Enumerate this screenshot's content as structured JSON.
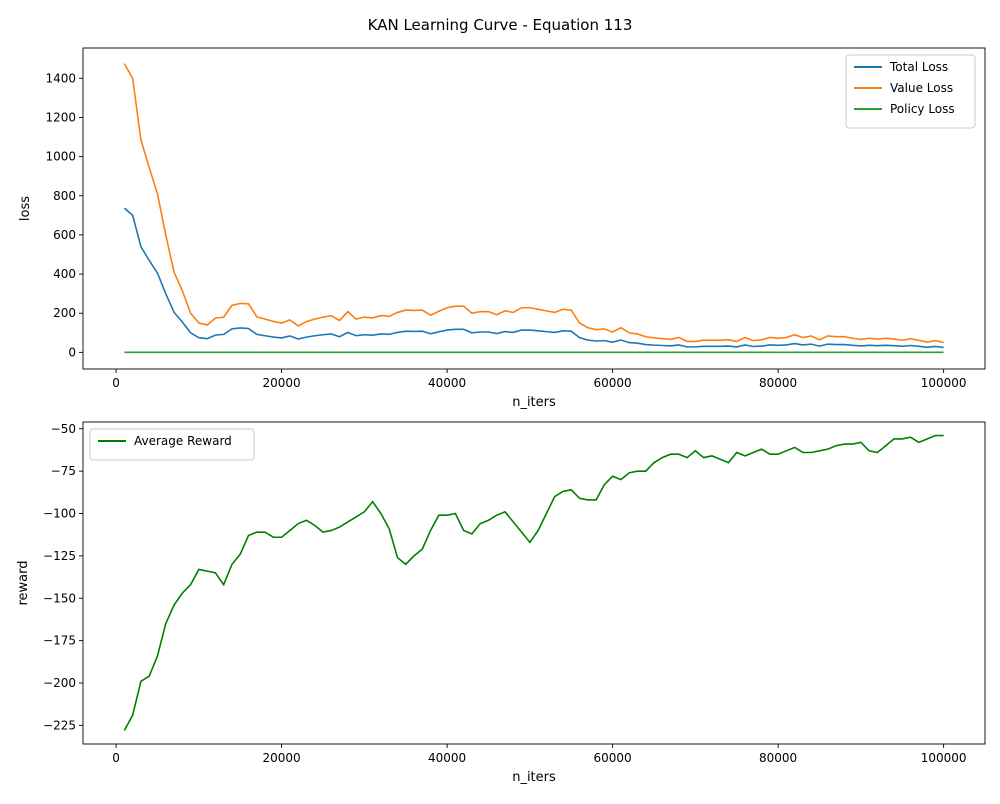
{
  "figure": {
    "title": "KAN Learning Curve - Equation 113"
  },
  "chart_data": [
    {
      "type": "line",
      "xlabel": "n_iters",
      "ylabel": "loss",
      "xlim": [
        -4000,
        105000
      ],
      "ylim": [
        -85,
        1555
      ],
      "xticks": [
        0,
        20000,
        40000,
        60000,
        80000,
        100000
      ],
      "yticks": [
        0,
        200,
        400,
        600,
        800,
        1000,
        1200,
        1400
      ],
      "legend": "top-right",
      "x": [
        1000,
        2000,
        3000,
        4000,
        5000,
        6000,
        7000,
        8000,
        9000,
        10000,
        11000,
        12000,
        13000,
        14000,
        15000,
        16000,
        17000,
        18000,
        19000,
        20000,
        21000,
        22000,
        23000,
        24000,
        25000,
        26000,
        27000,
        28000,
        29000,
        30000,
        31000,
        32000,
        33000,
        34000,
        35000,
        36000,
        37000,
        38000,
        39000,
        40000,
        41000,
        42000,
        43000,
        44000,
        45000,
        46000,
        47000,
        48000,
        49000,
        50000,
        51000,
        52000,
        53000,
        54000,
        55000,
        56000,
        57000,
        58000,
        59000,
        60000,
        61000,
        62000,
        63000,
        64000,
        65000,
        66000,
        67000,
        68000,
        69000,
        70000,
        71000,
        72000,
        73000,
        74000,
        75000,
        76000,
        77000,
        78000,
        79000,
        80000,
        81000,
        82000,
        83000,
        84000,
        85000,
        86000,
        87000,
        88000,
        89000,
        90000,
        91000,
        92000,
        93000,
        94000,
        95000,
        96000,
        97000,
        98000,
        99000,
        100000
      ],
      "series": [
        {
          "name": "Total Loss",
          "color": "#1f77b4",
          "values": [
            737,
            700,
            540,
            470,
            405,
            300,
            205,
            155,
            100,
            75,
            70,
            88,
            92,
            120,
            125,
            122,
            92,
            85,
            78,
            74,
            84,
            68,
            78,
            85,
            90,
            94,
            80,
            102,
            85,
            90,
            88,
            94,
            92,
            102,
            108,
            107,
            108,
            95,
            105,
            114,
            118,
            118,
            100,
            104,
            104,
            96,
            106,
            102,
            114,
            114,
            110,
            106,
            102,
            110,
            108,
            75,
            63,
            58,
            60,
            52,
            63,
            50,
            47,
            40,
            37,
            35,
            33,
            38,
            28,
            28,
            31,
            31,
            31,
            32,
            28,
            38,
            30,
            32,
            38,
            36,
            38,
            45,
            38,
            42,
            32,
            42,
            40,
            40,
            36,
            33,
            36,
            34,
            36,
            34,
            31,
            35,
            31,
            26,
            30,
            25
          ],
          "extra_note": ""
        },
        {
          "name": "Value Loss",
          "color": "#ff7f0e",
          "values": [
            1475,
            1400,
            1085,
            945,
            810,
            600,
            410,
            315,
            200,
            150,
            140,
            175,
            180,
            240,
            250,
            248,
            182,
            170,
            158,
            150,
            166,
            135,
            157,
            170,
            180,
            187,
            163,
            208,
            170,
            180,
            176,
            188,
            184,
            204,
            216,
            214,
            216,
            190,
            210,
            228,
            236,
            236,
            200,
            208,
            208,
            192,
            212,
            204,
            228,
            228,
            220,
            212,
            204,
            220,
            216,
            150,
            126,
            116,
            120,
            104,
            126,
            100,
            94,
            80,
            74,
            70,
            66,
            76,
            56,
            56,
            62,
            62,
            62,
            64,
            56,
            76,
            60,
            64,
            76,
            72,
            76,
            90,
            76,
            84,
            64,
            84,
            80,
            80,
            72,
            66,
            72,
            68,
            72,
            68,
            62,
            70,
            62,
            52,
            60,
            50
          ]
        },
        {
          "name": "Policy Loss",
          "color": "#2ca02c",
          "values": [
            0,
            0,
            0,
            0,
            0,
            0,
            0,
            0,
            0,
            0,
            0,
            0,
            0,
            0,
            0,
            0,
            0,
            0,
            0,
            0,
            0,
            0,
            0,
            0,
            0,
            0,
            0,
            0,
            0,
            0,
            0,
            0,
            0,
            0,
            0,
            0,
            0,
            0,
            0,
            0,
            0,
            0,
            0,
            0,
            0,
            0,
            0,
            0,
            0,
            0,
            0,
            0,
            0,
            0,
            0,
            0,
            0,
            0,
            0,
            0,
            0,
            0,
            0,
            0,
            0,
            0,
            0,
            0,
            0,
            0,
            0,
            0,
            0,
            0,
            0,
            0,
            0,
            0,
            0,
            0,
            0,
            0,
            0,
            0,
            0,
            0,
            0,
            0,
            0,
            0,
            0,
            0,
            0,
            0,
            0,
            0,
            0,
            0,
            0,
            0
          ]
        }
      ]
    },
    {
      "type": "line",
      "xlabel": "n_iters",
      "ylabel": "reward",
      "xlim": [
        -4000,
        105000
      ],
      "ylim": [
        -236,
        -46
      ],
      "xticks": [
        0,
        20000,
        40000,
        60000,
        80000,
        100000
      ],
      "yticks": [
        -225,
        -200,
        -175,
        -150,
        -125,
        -100,
        -75,
        -50
      ],
      "legend": "top-left",
      "x": [
        1000,
        2000,
        3000,
        4000,
        5000,
        6000,
        7000,
        8000,
        9000,
        10000,
        11000,
        12000,
        13000,
        14000,
        15000,
        16000,
        17000,
        18000,
        19000,
        20000,
        21000,
        22000,
        23000,
        24000,
        25000,
        26000,
        27000,
        28000,
        29000,
        30000,
        31000,
        32000,
        33000,
        34000,
        35000,
        36000,
        37000,
        38000,
        39000,
        40000,
        41000,
        42000,
        43000,
        44000,
        45000,
        46000,
        47000,
        48000,
        49000,
        50000,
        51000,
        52000,
        53000,
        54000,
        55000,
        56000,
        57000,
        58000,
        59000,
        60000,
        61000,
        62000,
        63000,
        64000,
        65000,
        66000,
        67000,
        68000,
        69000,
        70000,
        71000,
        72000,
        73000,
        74000,
        75000,
        76000,
        77000,
        78000,
        79000,
        80000,
        81000,
        82000,
        83000,
        84000,
        85000,
        86000,
        87000,
        88000,
        89000,
        90000,
        91000,
        92000,
        93000,
        94000,
        95000,
        96000,
        97000,
        98000,
        99000,
        100000
      ],
      "series": [
        {
          "name": "Average Reward",
          "color": "#008000",
          "values": [
            -228,
            -219,
            -199,
            -196,
            -184,
            -165,
            -154,
            -147,
            -142,
            -133,
            -134,
            -135,
            -142,
            -130,
            -124,
            -113,
            -111,
            -111,
            -114,
            -114,
            -110,
            -106,
            -104,
            -107,
            -111,
            -110,
            -108,
            -105,
            -102,
            -99,
            -93,
            -100,
            -109,
            -126,
            -130,
            -125,
            -121,
            -110,
            -101,
            -101,
            -100,
            -110,
            -112,
            -106,
            -104,
            -101,
            -99,
            -105,
            -111,
            -117,
            -110,
            -100,
            -90,
            -87,
            -86,
            -91,
            -92,
            -92,
            -83,
            -78,
            -80,
            -76,
            -75,
            -75,
            -70,
            -67,
            -65,
            -65,
            -67,
            -63,
            -67,
            -66,
            -68,
            -70,
            -64,
            -66,
            -64,
            -62,
            -65,
            -65,
            -63,
            -61,
            -64,
            -64,
            -63,
            -62,
            -60,
            -59,
            -59,
            -58,
            -63,
            -64,
            -60,
            -56,
            -56,
            -55,
            -58,
            -56,
            -54,
            -54
          ]
        }
      ]
    }
  ]
}
